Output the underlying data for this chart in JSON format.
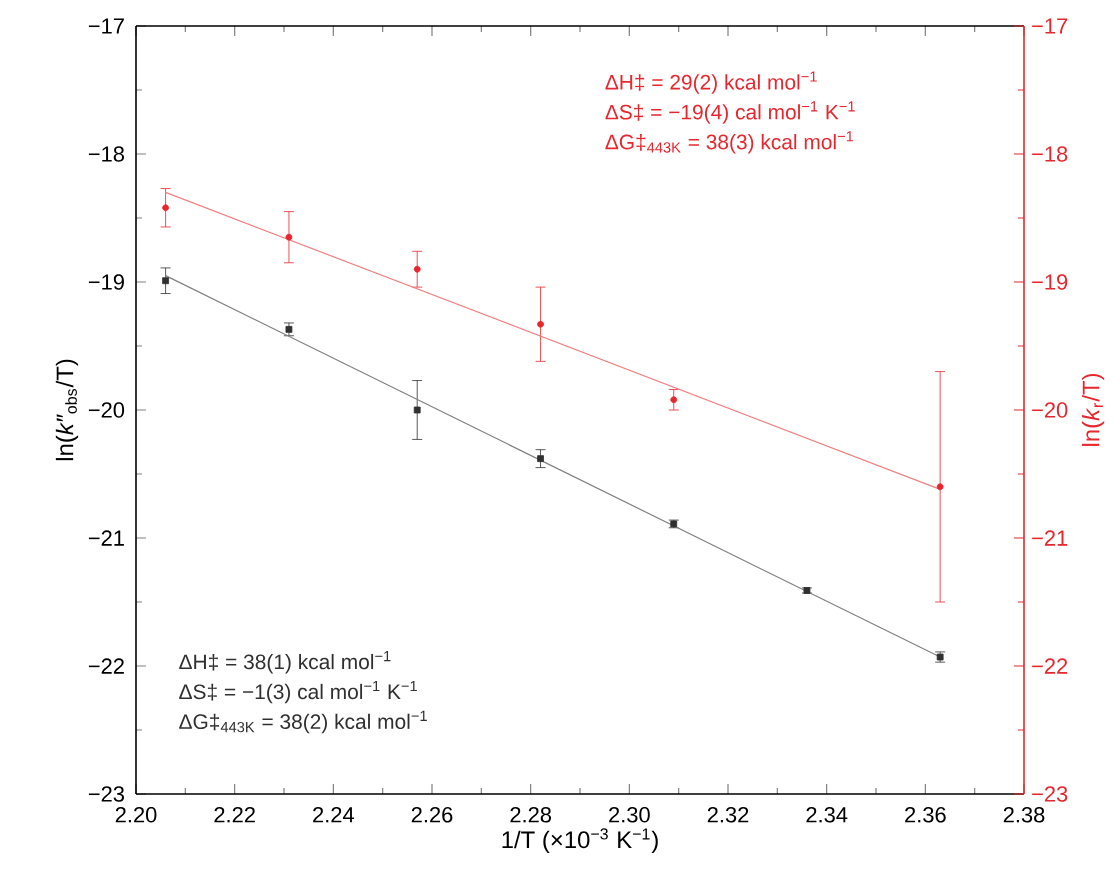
{
  "chart_data": {
    "type": "scatter",
    "xlabel": "1/T (×10$^{−3}$ K$^{−1}$)",
    "ylabel": "ln(*k″*$_{obs}$/T)",
    "y2label": "ln(*k*$_{r}$/T)",
    "xlim": [
      2.2,
      2.38
    ],
    "xticks": [
      {
        "value": 2.2,
        "label": "2.20"
      },
      {
        "value": 2.22,
        "label": "2.22"
      },
      {
        "value": 2.24,
        "label": "2.24"
      },
      {
        "value": 2.26,
        "label": "2.26"
      },
      {
        "value": 2.28,
        "label": "2.28"
      },
      {
        "value": 2.3,
        "label": "2.30"
      },
      {
        "value": 2.32,
        "label": "2.32"
      },
      {
        "value": 2.34,
        "label": "2.34"
      },
      {
        "value": 2.36,
        "label": "2.36"
      },
      {
        "value": 2.38,
        "label": "2.38"
      }
    ],
    "ylim": [
      -23,
      -17
    ],
    "yticks": [
      {
        "value": -23,
        "label": "−23"
      },
      {
        "value": -22,
        "label": "−22"
      },
      {
        "value": -21,
        "label": "−21"
      },
      {
        "value": -20,
        "label": "−20"
      },
      {
        "value": -19,
        "label": "−19"
      },
      {
        "value": -18,
        "label": "−18"
      },
      {
        "value": -17,
        "label": "−17"
      }
    ],
    "y2lim": [
      -23,
      -17
    ],
    "y2ticks": [
      {
        "value": -23,
        "label": "−23"
      },
      {
        "value": -22,
        "label": "−22"
      },
      {
        "value": -21,
        "label": "−21"
      },
      {
        "value": -20,
        "label": "−20"
      },
      {
        "value": -19,
        "label": "−19"
      },
      {
        "value": -18,
        "label": "−18"
      },
      {
        "value": -17,
        "label": "−17"
      }
    ],
    "series": [
      {
        "marker": "square",
        "color": "#303030",
        "x": [
          2.206,
          2.231,
          2.257,
          2.282,
          2.309,
          2.336,
          2.363
        ],
        "values": [
          -18.99,
          -19.37,
          -20.0,
          -20.38,
          -20.89,
          -21.41,
          -21.93
        ],
        "errors": [
          0.1,
          0.05,
          0.23,
          0.07,
          0.03,
          0.02,
          0.04
        ]
      },
      {
        "type": "line",
        "color": "#808080",
        "x": [
          2.206,
          2.363
        ],
        "values": [
          -18.95,
          -21.93
        ]
      },
      {
        "axis": "y2",
        "marker": "circle",
        "color": "#e8262d",
        "x": [
          2.206,
          2.231,
          2.257,
          2.282,
          2.309,
          2.363
        ],
        "values": [
          -18.42,
          -18.65,
          -18.9,
          -19.33,
          -19.92,
          -20.6
        ],
        "errors": [
          0.15,
          0.2,
          0.14,
          0.29,
          0.08,
          0.9
        ]
      },
      {
        "type": "line",
        "axis": "y2",
        "color": "#f08080",
        "x": [
          2.206,
          2.363
        ],
        "values": [
          -18.3,
          -20.62
        ]
      }
    ],
    "annotations": [
      "ΔH‡ = 29(2) kcal mol$^{−1}$",
      "ΔS‡ = −19(4) cal mol$^{−1}$ K$^{−1}$",
      "ΔG‡$_{443K}$ = 38(3) kcal mol$^{−1}$",
      "ΔH‡ = 38(1) kcal mol$^{−1}$",
      "ΔS‡ = −1(3) cal mol$^{−1}$ K$^{−1}$",
      "ΔG‡$_{443K}$ = 38(2) kcal mol$^{−1}$"
    ]
  }
}
